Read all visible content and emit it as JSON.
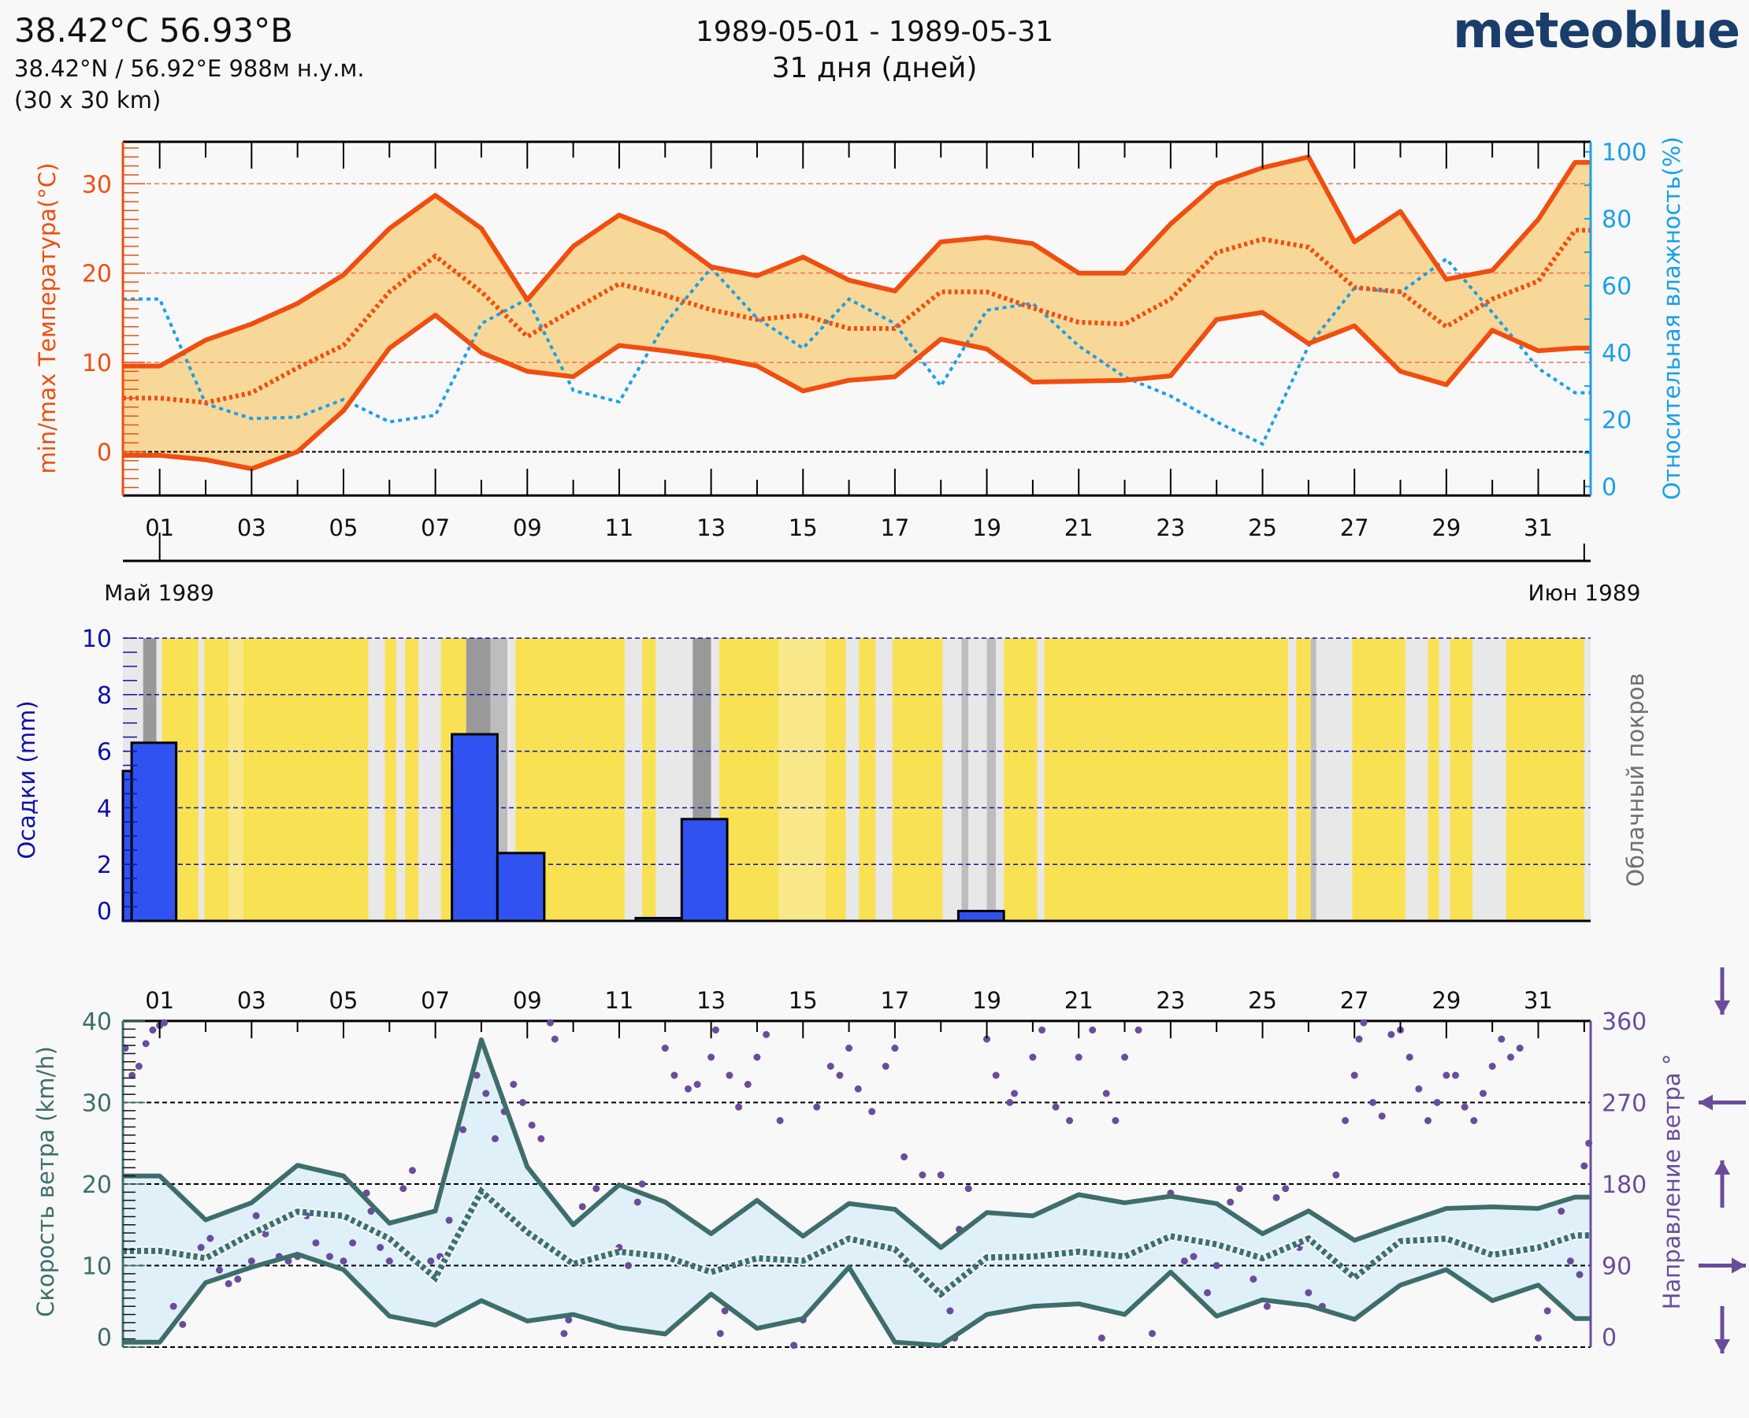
{
  "header": {
    "location_title": "38.42°C 56.93°B",
    "coordinates": "38.42°N / 56.92°E   988м н.у.м.",
    "grid": "(30 x 30 km)",
    "period": "1989-05-01 - 1989-05-31",
    "days": "31 дня (дней)",
    "logo": "meteoblue"
  },
  "colors": {
    "temperature": "#f04e10",
    "temperature_band": "#f8d898",
    "humidity": "#1aa0e8",
    "precipitation": "#2f52f0",
    "precip_axis": "#1010a8",
    "cloud_axis": "#707070",
    "wind_speed": "#3e6e6c",
    "wind_band": "#e0f0f8",
    "wind_direction": "#6a4c9c",
    "cloud_clear": "#f9e154",
    "cloud_partly": "#f8e88a",
    "cloud_light": "#e8e8e8",
    "cloud_mid": "#bdbdbd",
    "cloud_dark": "#999999"
  },
  "chart_data": [
    {
      "type": "line",
      "x_tick_labels": [
        "01",
        "03",
        "05",
        "07",
        "09",
        "11",
        "13",
        "15",
        "17",
        "19",
        "21",
        "23",
        "25",
        "27",
        "29",
        "31"
      ],
      "month_labels": [
        "Май 1989",
        "Июн 1989"
      ],
      "ylabel": "min/max Температура(°C)",
      "y2label": "Относительная влажность(%)",
      "ylim": [
        -4.9,
        34.7
      ],
      "y2lim": [
        -2.7,
        103
      ],
      "y_ticks": [
        0,
        10,
        20,
        30
      ],
      "y2_ticks": [
        0,
        20,
        40,
        60,
        80,
        100
      ],
      "grid": true,
      "x": [
        0.2,
        1,
        2,
        3,
        4,
        5,
        6,
        7,
        8,
        9,
        10,
        11,
        12,
        13,
        14,
        15,
        16,
        17,
        18,
        19,
        20,
        21,
        22,
        23,
        24,
        25,
        26,
        27,
        28,
        29,
        30,
        31,
        31.8,
        32.15
      ],
      "series": [
        {
          "key": "max",
          "style": "solid",
          "values": [
            9.6,
            9.6,
            12.5,
            14.3,
            16.6,
            19.8,
            25,
            28.7,
            25,
            17,
            23,
            26.5,
            24.5,
            20.7,
            19.7,
            21.8,
            19.2,
            18,
            23.5,
            24,
            23.3,
            20,
            20,
            25.5,
            30,
            31.8,
            33,
            23.5,
            26.9,
            19.3,
            20.3,
            26,
            32.4,
            32.4
          ]
        },
        {
          "key": "min",
          "style": "solid",
          "values": [
            -0.4,
            -0.4,
            -0.9,
            -1.9,
            0,
            4.6,
            11.6,
            15.3,
            11.1,
            9,
            8.4,
            11.9,
            11.3,
            10.6,
            9.6,
            6.8,
            8,
            8.4,
            12.6,
            11.5,
            7.8,
            7.9,
            8,
            8.5,
            14.8,
            15.6,
            12.1,
            14.1,
            9,
            7.5,
            13.6,
            11.3,
            11.6,
            11.6
          ]
        },
        {
          "key": "mean",
          "style": "dotted",
          "values": [
            6,
            6,
            5.5,
            6.6,
            9.4,
            11.9,
            17.9,
            21.9,
            17.9,
            12.9,
            15.9,
            18.8,
            17.5,
            15.9,
            14.8,
            15.3,
            13.8,
            13.8,
            17.9,
            17.9,
            16.1,
            14.5,
            14.3,
            17.1,
            22.3,
            23.8,
            22.9,
            18.4,
            17.9,
            14,
            17.1,
            19.1,
            24.8,
            24.8
          ]
        },
        {
          "key": "humidity",
          "style": "dotted",
          "axis": "right",
          "values": [
            56,
            56,
            24.7,
            20.3,
            20.7,
            26,
            19.3,
            21.3,
            48.7,
            56,
            28.7,
            25.3,
            48.7,
            65.3,
            50.3,
            41.3,
            56,
            48.7,
            30,
            52.7,
            54.7,
            42,
            32.7,
            27,
            19.3,
            12.7,
            42,
            59.3,
            58,
            68,
            52,
            35.3,
            28,
            28
          ]
        }
      ]
    },
    {
      "type": "bar",
      "ylabel": "Осадки (mm)",
      "y2label": "Облачный покров",
      "ylim": [
        0,
        10
      ],
      "y_ticks": [
        0,
        2,
        4,
        6,
        8,
        10
      ],
      "grid": true,
      "bars": [
        {
          "start": 0.2,
          "end": 0.39,
          "mm": 5.3
        },
        {
          "start": 0.39,
          "end": 1.36,
          "mm": 6.3
        },
        {
          "start": 7.36,
          "end": 8.35,
          "mm": 6.6
        },
        {
          "start": 8.35,
          "end": 9.37,
          "mm": 2.4
        },
        {
          "start": 11.36,
          "end": 12.36,
          "mm": 0.1
        },
        {
          "start": 12.36,
          "end": 13.35,
          "mm": 3.6
        },
        {
          "start": 18.38,
          "end": 19.37,
          "mm": 0.35
        }
      ],
      "cloud_cover": [
        [
          0.2,
          0.64,
          "light"
        ],
        [
          0.64,
          0.93,
          "dark"
        ],
        [
          0.93,
          1.05,
          "light"
        ],
        [
          1.05,
          1.85,
          "clear"
        ],
        [
          1.85,
          1.97,
          "light"
        ],
        [
          1.97,
          2.5,
          "clear"
        ],
        [
          2.5,
          2.82,
          "partly"
        ],
        [
          2.82,
          5.54,
          "clear"
        ],
        [
          5.54,
          5.9,
          "light"
        ],
        [
          5.9,
          6.15,
          "clear"
        ],
        [
          6.15,
          6.34,
          "light"
        ],
        [
          6.34,
          6.63,
          "clear"
        ],
        [
          6.63,
          7.12,
          "light"
        ],
        [
          7.12,
          7.67,
          "clear"
        ],
        [
          7.67,
          8.2,
          "dark"
        ],
        [
          8.2,
          8.57,
          "mid"
        ],
        [
          8.57,
          8.74,
          "light"
        ],
        [
          8.74,
          11.12,
          "clear"
        ],
        [
          11.12,
          11.5,
          "light"
        ],
        [
          11.5,
          11.8,
          "clear"
        ],
        [
          11.8,
          12.6,
          "light"
        ],
        [
          12.6,
          13.0,
          "dark"
        ],
        [
          13.0,
          13.18,
          "light"
        ],
        [
          13.18,
          14.47,
          "clear"
        ],
        [
          14.47,
          15.49,
          "partly"
        ],
        [
          15.49,
          15.93,
          "clear"
        ],
        [
          15.93,
          16.22,
          "light"
        ],
        [
          16.22,
          16.58,
          "clear"
        ],
        [
          16.58,
          16.95,
          "light"
        ],
        [
          16.95,
          18.04,
          "clear"
        ],
        [
          18.04,
          18.45,
          "light"
        ],
        [
          18.45,
          18.6,
          "mid"
        ],
        [
          18.6,
          19.0,
          "light"
        ],
        [
          19.0,
          19.2,
          "mid"
        ],
        [
          19.2,
          19.37,
          "light"
        ],
        [
          19.37,
          20.1,
          "clear"
        ],
        [
          20.1,
          20.25,
          "light"
        ],
        [
          20.25,
          25.56,
          "clear"
        ],
        [
          25.56,
          25.73,
          "light"
        ],
        [
          25.73,
          26.05,
          "clear"
        ],
        [
          26.05,
          26.17,
          "mid"
        ],
        [
          26.17,
          26.95,
          "light"
        ],
        [
          26.95,
          28.11,
          "clear"
        ],
        [
          28.11,
          28.6,
          "light"
        ],
        [
          28.6,
          28.84,
          "clear"
        ],
        [
          28.84,
          29.08,
          "light"
        ],
        [
          29.08,
          29.57,
          "clear"
        ],
        [
          29.57,
          30.3,
          "light"
        ],
        [
          30.3,
          32.0,
          "clear"
        ],
        [
          32.0,
          32.14,
          "light"
        ]
      ]
    },
    {
      "type": "line",
      "x_tick_labels": [
        "01",
        "03",
        "05",
        "07",
        "09",
        "11",
        "13",
        "15",
        "17",
        "19",
        "21",
        "23",
        "25",
        "27",
        "29",
        "31"
      ],
      "ylabel": "Скорость ветра (km/h)",
      "y2label": "Направление ветра °",
      "ylim": [
        0,
        40
      ],
      "y2lim": [
        0,
        360
      ],
      "y_ticks": [
        0,
        10,
        20,
        30,
        40
      ],
      "y2_ticks": [
        0,
        90,
        180,
        270,
        360
      ],
      "grid": true,
      "x": [
        0.2,
        1,
        2,
        3,
        4,
        5,
        6,
        7,
        8,
        9,
        10,
        11,
        12,
        13,
        14,
        15,
        16,
        17,
        18,
        19,
        20,
        21,
        22,
        23,
        24,
        25,
        26,
        27,
        28,
        29,
        30,
        31,
        31.8,
        32.15
      ],
      "series": [
        {
          "key": "max",
          "style": "solid",
          "values": [
            21,
            21,
            15.6,
            17.7,
            22.3,
            21,
            15.2,
            16.7,
            37.7,
            22.1,
            15,
            19.9,
            17.8,
            13.9,
            18,
            13.6,
            17.6,
            16.9,
            12.2,
            16.5,
            16.1,
            18.7,
            17.7,
            18.5,
            17.6,
            13.9,
            16.7,
            13.1,
            15.1,
            17,
            17.2,
            17,
            18.4,
            18.4
          ]
        },
        {
          "key": "min",
          "style": "solid",
          "values": [
            0.6,
            0.6,
            7.9,
            9.8,
            11.4,
            9.5,
            3.8,
            2.7,
            5.7,
            3.2,
            4,
            2.4,
            1.6,
            6.5,
            2.3,
            3.5,
            9.8,
            0.6,
            0.2,
            4,
            5,
            5.3,
            4,
            9.2,
            3.8,
            5.8,
            5.1,
            3.4,
            7.6,
            9.5,
            5.7,
            7.6,
            3.5,
            3.5
          ]
        },
        {
          "key": "mean",
          "style": "dotted",
          "values": [
            11.8,
            11.8,
            10.9,
            13.9,
            16.6,
            16.1,
            13.3,
            8.5,
            19.1,
            14.1,
            10.2,
            11.7,
            11.1,
            9.2,
            10.9,
            10.6,
            13.3,
            12,
            6.5,
            11,
            11.1,
            11.7,
            11.1,
            13.6,
            12.6,
            10.9,
            13.3,
            8.5,
            13,
            13.3,
            11.3,
            12.2,
            13.7,
            13.7
          ]
        }
      ],
      "direction_points": [
        [
          0.25,
          330
        ],
        [
          0.4,
          300
        ],
        [
          0.55,
          310
        ],
        [
          0.7,
          335
        ],
        [
          0.85,
          350
        ],
        [
          1.0,
          355
        ],
        [
          1.1,
          358
        ],
        [
          1.3,
          45
        ],
        [
          1.5,
          25
        ],
        [
          1.9,
          110
        ],
        [
          2.1,
          120
        ],
        [
          2.3,
          85
        ],
        [
          2.5,
          70
        ],
        [
          2.7,
          75
        ],
        [
          3.0,
          95
        ],
        [
          3.1,
          145
        ],
        [
          3.3,
          125
        ],
        [
          3.6,
          100
        ],
        [
          3.8,
          95
        ],
        [
          4.0,
          100
        ],
        [
          4.2,
          145
        ],
        [
          4.4,
          115
        ],
        [
          4.7,
          100
        ],
        [
          5.0,
          95
        ],
        [
          5.2,
          115
        ],
        [
          5.5,
          170
        ],
        [
          5.6,
          150
        ],
        [
          5.8,
          110
        ],
        [
          6.0,
          95
        ],
        [
          6.3,
          175
        ],
        [
          6.5,
          195
        ],
        [
          6.9,
          95
        ],
        [
          7.1,
          100
        ],
        [
          7.3,
          140
        ],
        [
          7.6,
          240
        ],
        [
          7.9,
          300
        ],
        [
          8.1,
          280
        ],
        [
          8.3,
          230
        ],
        [
          8.5,
          260
        ],
        [
          8.7,
          290
        ],
        [
          8.9,
          270
        ],
        [
          9.1,
          245
        ],
        [
          9.3,
          230
        ],
        [
          9.5,
          358
        ],
        [
          9.6,
          340
        ],
        [
          9.8,
          15
        ],
        [
          9.9,
          30
        ],
        [
          10.2,
          155
        ],
        [
          10.5,
          175
        ],
        [
          11.0,
          110
        ],
        [
          11.2,
          90
        ],
        [
          11.4,
          160
        ],
        [
          11.5,
          180
        ],
        [
          12.0,
          330
        ],
        [
          12.2,
          300
        ],
        [
          12.5,
          285
        ],
        [
          12.7,
          290
        ],
        [
          13.0,
          320
        ],
        [
          13.1,
          350
        ],
        [
          13.2,
          15
        ],
        [
          13.3,
          40
        ],
        [
          13.4,
          300
        ],
        [
          13.6,
          265
        ],
        [
          13.8,
          290
        ],
        [
          14.0,
          320
        ],
        [
          14.2,
          345
        ],
        [
          14.5,
          250
        ],
        [
          14.8,
          2
        ],
        [
          15.0,
          30
        ],
        [
          15.3,
          265
        ],
        [
          15.6,
          310
        ],
        [
          15.8,
          300
        ],
        [
          16.0,
          330
        ],
        [
          16.2,
          285
        ],
        [
          16.5,
          260
        ],
        [
          16.8,
          310
        ],
        [
          17.0,
          330
        ],
        [
          17.2,
          210
        ],
        [
          17.6,
          190
        ],
        [
          18.0,
          190
        ],
        [
          18.2,
          40
        ],
        [
          18.3,
          10
        ],
        [
          18.4,
          130
        ],
        [
          18.6,
          175
        ],
        [
          19.0,
          340
        ],
        [
          19.2,
          300
        ],
        [
          19.5,
          270
        ],
        [
          19.6,
          280
        ],
        [
          20.0,
          320
        ],
        [
          20.2,
          350
        ],
        [
          20.5,
          265
        ],
        [
          20.8,
          250
        ],
        [
          21.0,
          320
        ],
        [
          21.3,
          350
        ],
        [
          21.5,
          10
        ],
        [
          21.6,
          280
        ],
        [
          21.8,
          250
        ],
        [
          22.0,
          320
        ],
        [
          22.3,
          350
        ],
        [
          22.6,
          15
        ],
        [
          23.0,
          170
        ],
        [
          23.3,
          95
        ],
        [
          23.5,
          100
        ],
        [
          23.8,
          60
        ],
        [
          24.0,
          90
        ],
        [
          24.3,
          160
        ],
        [
          24.5,
          175
        ],
        [
          24.8,
          75
        ],
        [
          25.1,
          45
        ],
        [
          25.3,
          165
        ],
        [
          25.5,
          175
        ],
        [
          25.8,
          110
        ],
        [
          26.0,
          60
        ],
        [
          26.3,
          45
        ],
        [
          26.6,
          190
        ],
        [
          26.8,
          250
        ],
        [
          27.0,
          300
        ],
        [
          27.1,
          340
        ],
        [
          27.2,
          358
        ],
        [
          27.4,
          270
        ],
        [
          27.6,
          255
        ],
        [
          27.8,
          345
        ],
        [
          28.0,
          350
        ],
        [
          28.2,
          320
        ],
        [
          28.4,
          285
        ],
        [
          28.6,
          250
        ],
        [
          28.8,
          270
        ],
        [
          29.0,
          300
        ],
        [
          29.2,
          300
        ],
        [
          29.4,
          265
        ],
        [
          29.6,
          250
        ],
        [
          29.8,
          280
        ],
        [
          30.0,
          310
        ],
        [
          30.2,
          340
        ],
        [
          30.4,
          320
        ],
        [
          30.6,
          330
        ],
        [
          31.0,
          10
        ],
        [
          31.2,
          40
        ],
        [
          31.5,
          150
        ],
        [
          31.7,
          95
        ],
        [
          31.9,
          80
        ],
        [
          32.0,
          200
        ],
        [
          32.1,
          225
        ]
      ],
      "direction_arrows": [
        "down",
        "right",
        "up",
        "left",
        "down"
      ]
    }
  ]
}
